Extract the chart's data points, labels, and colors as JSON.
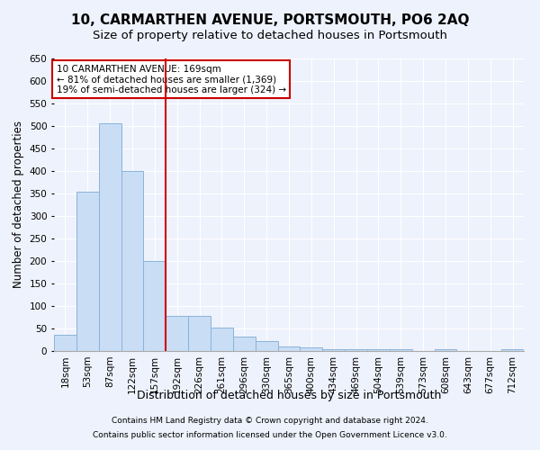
{
  "title": "10, CARMARTHEN AVENUE, PORTSMOUTH, PO6 2AQ",
  "subtitle": "Size of property relative to detached houses in Portsmouth",
  "xlabel": "Distribution of detached houses by size in Portsmouth",
  "ylabel": "Number of detached properties",
  "categories": [
    "18sqm",
    "53sqm",
    "87sqm",
    "122sqm",
    "157sqm",
    "192sqm",
    "226sqm",
    "261sqm",
    "296sqm",
    "330sqm",
    "365sqm",
    "400sqm",
    "434sqm",
    "469sqm",
    "504sqm",
    "539sqm",
    "573sqm",
    "608sqm",
    "643sqm",
    "677sqm",
    "712sqm"
  ],
  "values": [
    37,
    355,
    507,
    400,
    200,
    78,
    78,
    53,
    33,
    22,
    11,
    9,
    5,
    5,
    5,
    5,
    0,
    5,
    0,
    0,
    5
  ],
  "bar_color": "#c9ddf5",
  "bar_edge_color": "#8ab4d8",
  "annotation_line1": "10 CARMARTHEN AVENUE: 169sqm",
  "annotation_line2": "← 81% of detached houses are smaller (1,369)",
  "annotation_line3": "19% of semi-detached houses are larger (324) →",
  "annotation_box_color": "#ffffff",
  "annotation_box_edge_color": "#cc0000",
  "vline_color": "#cc0000",
  "ylim": [
    0,
    650
  ],
  "yticks": [
    0,
    50,
    100,
    150,
    200,
    250,
    300,
    350,
    400,
    450,
    500,
    550,
    600,
    650
  ],
  "title_fontsize": 11,
  "subtitle_fontsize": 9.5,
  "xlabel_fontsize": 9,
  "ylabel_fontsize": 8.5,
  "tick_fontsize": 7.5,
  "footnote1": "Contains HM Land Registry data © Crown copyright and database right 2024.",
  "footnote2": "Contains public sector information licensed under the Open Government Licence v3.0.",
  "background_color": "#eef2fc",
  "plot_bg_color": "#eef2fc",
  "grid_color": "#ffffff"
}
